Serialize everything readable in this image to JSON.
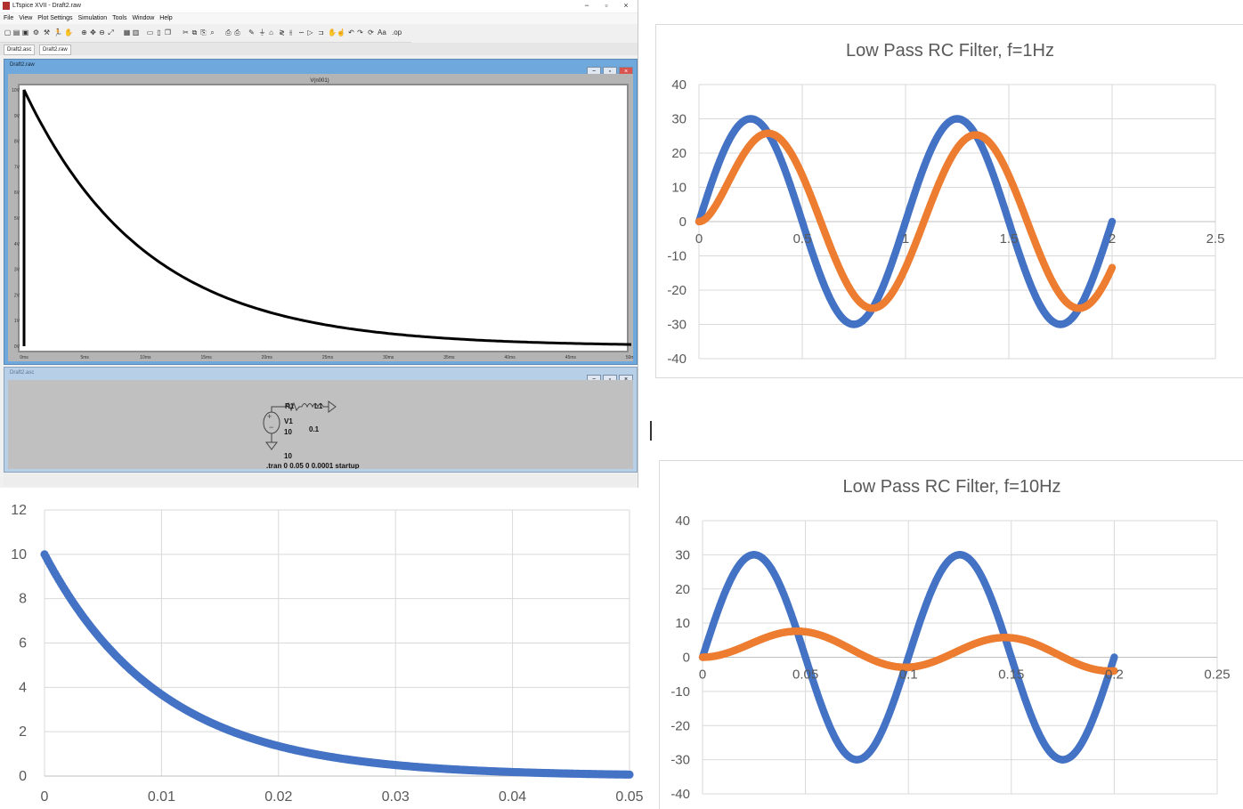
{
  "lt_window": {
    "title": "LTspice XVII - Draft2.raw",
    "controls": [
      "−",
      "▫",
      "×"
    ],
    "menu": [
      "File",
      "View",
      "Plot Settings",
      "Simulation",
      "Tools",
      "Window",
      "Help"
    ],
    "tabs": [
      "Draft2.asc",
      "Draft2.raw"
    ],
    "wave_window_title": "Draft2.raw",
    "sch_window_title": "Draft2.asc",
    "trace_label": "V(n001)",
    "y_ticks": [
      "10V",
      "9V",
      "8V",
      "7V",
      "6V",
      "5V",
      "4V",
      "3V",
      "2V",
      "1V",
      "0V"
    ],
    "x_ticks": [
      "0ms",
      "5ms",
      "10ms",
      "15ms",
      "20ms",
      "25ms",
      "30ms",
      "35ms",
      "40ms",
      "45ms",
      "50ms"
    ],
    "schematic": {
      "r1": "R1",
      "v1": "V1",
      "l1": "L1",
      "v1_value": "10",
      "l1_value": "0.1",
      "r1_value": "10",
      "directive": ".tran 0 0.05 0 0.0001 startup"
    }
  },
  "chart_data": [
    {
      "type": "scatter",
      "title": "Low Pass RC Filter, f=1Hz",
      "xlim": [
        0,
        2.5
      ],
      "ylim": [
        -40,
        40
      ],
      "x_ticks": [
        "0",
        "0.5",
        "1",
        "1.5",
        "2",
        "2.5"
      ],
      "y_ticks": [
        "40",
        "30",
        "20",
        "10",
        "0",
        "-10",
        "-20",
        "-30",
        "-40"
      ],
      "grid": true,
      "series": [
        {
          "color": "#4472c4",
          "function": "30*sin(2*pi*1*t)",
          "x_range": [
            0,
            2
          ],
          "amplitude": 30,
          "frequency": 1
        },
        {
          "color": "#ed7d31",
          "function": "filtered output",
          "x_range": [
            0,
            2
          ],
          "amplitude": 25.3,
          "frequency": 1,
          "phase_deg": -32.1
        }
      ]
    },
    {
      "type": "scatter",
      "title": "Low Pass RC Filter, f=10Hz",
      "xlim": [
        0,
        0.25
      ],
      "ylim": [
        -40,
        40
      ],
      "x_ticks": [
        "0",
        "0.05",
        "0.1",
        "0.15",
        "0.2",
        "0.25"
      ],
      "y_ticks": [
        "40",
        "30",
        "20",
        "10",
        "0",
        "-10",
        "-20",
        "-30",
        "-40"
      ],
      "grid": true,
      "series": [
        {
          "color": "#4472c4",
          "function": "30*sin(2*pi*10*t)",
          "x_range": [
            0,
            0.2
          ],
          "amplitude": 30,
          "frequency": 10
        },
        {
          "color": "#ed7d31",
          "function": "filtered output",
          "x_range": [
            0,
            0.2
          ],
          "amplitude": 4.7,
          "frequency": 10,
          "phase_deg": -81
        }
      ]
    },
    {
      "type": "scatter",
      "title": "",
      "xlim": [
        0,
        0.05
      ],
      "ylim": [
        0,
        12
      ],
      "x_ticks": [
        "0",
        "0.01",
        "0.02",
        "0.03",
        "0.04",
        "0.05"
      ],
      "y_ticks": [
        "12",
        "10",
        "8",
        "6",
        "4",
        "2",
        "0"
      ],
      "grid": true,
      "series": [
        {
          "color": "#4472c4",
          "function": "10*exp(-t/0.01)",
          "x_range": [
            0,
            0.05
          ],
          "start": 10,
          "tau": 0.01
        }
      ]
    }
  ]
}
